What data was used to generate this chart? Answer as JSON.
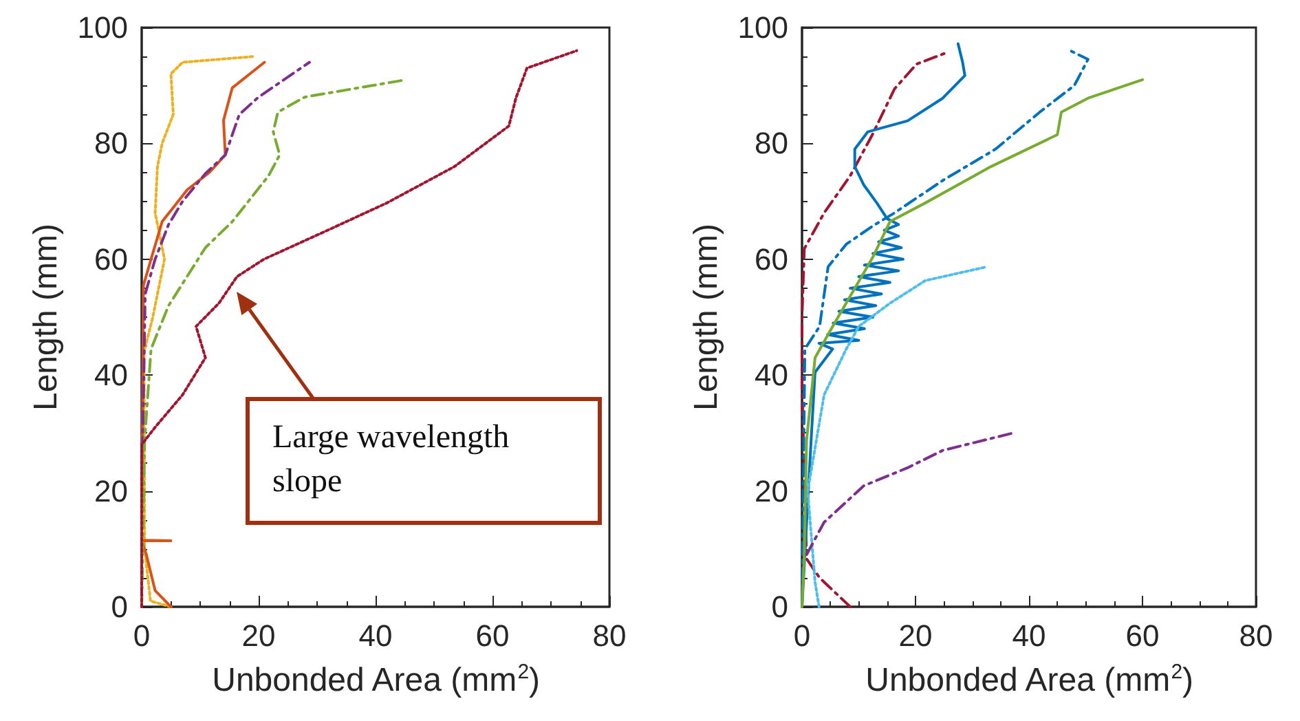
{
  "chart_data": [
    {
      "type": "line",
      "xlabel": "Unbonded Area (mm$^{2}$)",
      "ylabel": "Length (mm)",
      "xlim": [
        0,
        80
      ],
      "xticks": [
        0,
        20,
        40,
        60,
        80
      ],
      "ylim": [
        0,
        100
      ],
      "yticks": [
        0,
        20,
        40,
        60,
        80,
        100
      ],
      "grid": false,
      "marker": "none",
      "annotations": [
        "Large wavelength slope"
      ],
      "series": [
        {
          "color": "#edb120",
          "line_style": "dotted",
          "x": [
            5,
            1.5,
            0.5,
            0.4,
            1.9,
            3.9,
            2.3,
            2.7,
            3.5,
            5.4,
            5,
            7,
            19.2
          ],
          "values": [
            0,
            1,
            10,
            44,
            50,
            60,
            68,
            76,
            80,
            85,
            92,
            94,
            95
          ]
        },
        {
          "color": "#d95319",
          "line_style": "solid",
          "x": [
            5,
            2.3,
            0.8,
            0,
            5,
            0,
            0.3,
            1.6,
            3.5,
            7.8,
            11.6,
            14.3,
            14,
            15.5,
            21
          ],
          "values": [
            0,
            2.8,
            9,
            11.4,
            11.4,
            11.5,
            55.5,
            60,
            66.5,
            72,
            75,
            78,
            84,
            89.6,
            94
          ]
        },
        {
          "color": "#7e2f8e",
          "line_style": "dashed",
          "x": [
            0,
            0.2,
            0.6,
            2.3,
            4.6,
            7,
            10.9,
            14.3,
            16.7,
            20,
            28.7
          ],
          "values": [
            0,
            30,
            54,
            60,
            66,
            70,
            74.8,
            78,
            85,
            88,
            94
          ]
        },
        {
          "color": "#77ac30",
          "line_style": "dashed",
          "x": [
            0,
            0.5,
            1.6,
            4.6,
            10.9,
            15.5,
            21.7,
            23.6,
            22.5,
            23.3,
            27.9,
            45.3
          ],
          "values": [
            0,
            28.7,
            44.5,
            52,
            62,
            66.5,
            74.4,
            78,
            82,
            85.4,
            88,
            91
          ]
        },
        {
          "color": "#a2142f",
          "line_style": "dotted",
          "x": [
            0,
            0,
            2.3,
            7,
            10.9,
            9.3,
            13.2,
            16.3,
            20.9,
            31.8,
            41.9,
            53.5,
            62.8,
            64,
            65.9,
            74.4
          ],
          "values": [
            0,
            28,
            31,
            36.6,
            43,
            48.4,
            52.4,
            57,
            60,
            65,
            69.7,
            76,
            83,
            87.8,
            93,
            96
          ]
        }
      ]
    },
    {
      "type": "line",
      "xlabel": "Unbonded Area (mm$^{2}$)",
      "ylabel": "Length (mm)",
      "xlim": [
        0,
        80
      ],
      "xticks": [
        0,
        20,
        40,
        60,
        80
      ],
      "ylim": [
        0,
        100
      ],
      "yticks": [
        0,
        20,
        40,
        60,
        80,
        100
      ],
      "grid": false,
      "marker": "none",
      "series": [
        {
          "color": "#a2142f",
          "line_style": "dashed",
          "x": [
            8.5,
            3.1,
            0.8,
            0,
            0,
            0.4,
            3.9,
            8.5,
            12.4,
            16.3,
            20.2,
            25.6
          ],
          "values": [
            0,
            5,
            8.3,
            38,
            50,
            61.8,
            68,
            74.4,
            81.5,
            89.4,
            93.7,
            95.7
          ]
        },
        {
          "color": "#0072bd",
          "line_style": "solid",
          "x": [
            0,
            1.6,
            2.3,
            5.4,
            3,
            10,
            4.5,
            11,
            5.5,
            12.5,
            6.5,
            13,
            7.5,
            14,
            8.5,
            15.5,
            10,
            17,
            11,
            17.8,
            12.5,
            17.5,
            13.5,
            17,
            14.5,
            17,
            15,
            13.2,
            10.9,
            9.3,
            9.3,
            11.6,
            18.6,
            24.8,
            28.7,
            28.3,
            27.5
          ],
          "values": [
            0,
            28.7,
            40.5,
            44.5,
            45.5,
            46,
            47,
            48,
            49,
            50,
            51,
            52,
            53,
            54,
            55,
            56,
            57,
            58,
            59,
            60,
            61,
            62,
            63,
            64,
            65,
            66,
            67,
            69.7,
            72.8,
            76,
            79,
            82,
            83.9,
            87.8,
            91.7,
            94,
            97.2
          ]
        },
        {
          "color": "#0072bd",
          "line_style": "dashed",
          "x": [
            0,
            0.5,
            3.1,
            4.6,
            7.8,
            12.4,
            16.3,
            24.8,
            34.1,
            41.9,
            48,
            50.4,
            47.3
          ],
          "values": [
            0,
            44.5,
            48.4,
            58.7,
            62.6,
            65.7,
            68,
            73.6,
            79,
            85.4,
            90,
            94.5,
            96
          ]
        },
        {
          "color": "#4dbeee",
          "line_style": "dotted",
          "x": [
            3,
            2.3,
            1,
            3.9,
            7.8,
            10,
            15.5,
            21.7,
            32.6
          ],
          "values": [
            0,
            4.3,
            20,
            36.6,
            44.5,
            48.4,
            52.4,
            56.3,
            58.7
          ]
        },
        {
          "color": "#77ac30",
          "line_style": "solid",
          "x": [
            0,
            0.4,
            0.8,
            2.3,
            5.4,
            12.4,
            15.5,
            21.7,
            33.3,
            45,
            45.7,
            50.4,
            60
          ],
          "values": [
            0,
            9,
            28.7,
            43,
            48.4,
            60.2,
            66.5,
            69.7,
            76,
            81.5,
            85.4,
            87.8,
            91
          ]
        },
        {
          "color": "#7e2f8e",
          "line_style": "dashed",
          "x": [
            0.8,
            3.9,
            10.9,
            18.6,
            24.8,
            37.2
          ],
          "values": [
            9,
            14.6,
            20.9,
            24,
            27,
            30
          ]
        }
      ]
    }
  ]
}
